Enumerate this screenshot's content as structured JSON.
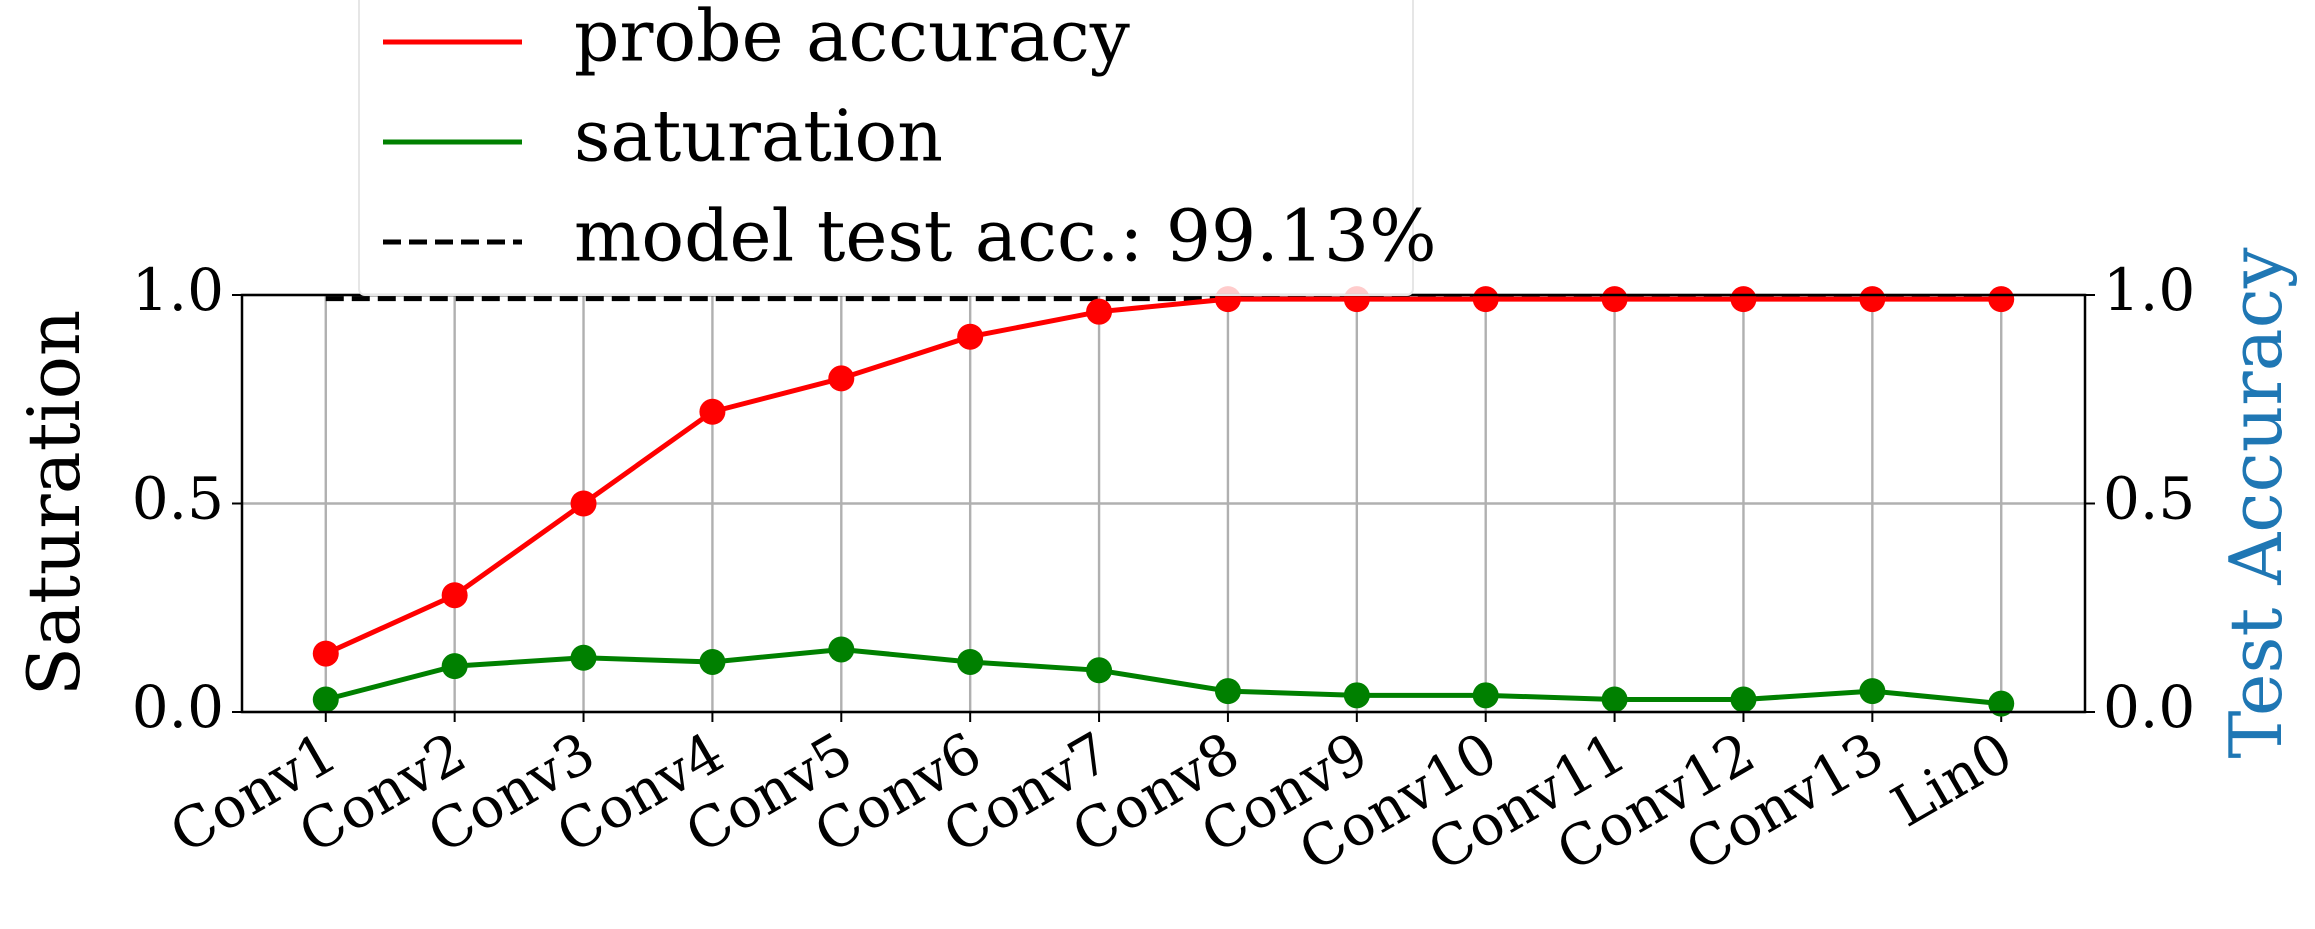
{
  "chart_data": {
    "type": "line",
    "categories": [
      "Conv1",
      "Conv2",
      "Conv3",
      "Conv4",
      "Conv5",
      "Conv6",
      "Conv7",
      "Conv8",
      "Conv9",
      "Conv10",
      "Conv11",
      "Conv12",
      "Conv13",
      "Lin0"
    ],
    "ylabel": "Saturation",
    "y2label": "Test Accuracy",
    "y2label_color": "#1f77b4",
    "ylim": [
      0,
      1
    ],
    "yticks": [
      {
        "value": 0,
        "label": "0.0"
      },
      {
        "value": 0.5,
        "label": "0.5"
      },
      {
        "value": 1,
        "label": "1.0"
      }
    ],
    "y2lim": [
      0,
      1
    ],
    "y2ticks": [
      {
        "value": 0,
        "label": "0.0"
      },
      {
        "value": 0.5,
        "label": "0.5"
      },
      {
        "value": 1,
        "label": "1.0"
      }
    ],
    "grid": true,
    "series": [
      {
        "name": "probe accuracy",
        "color": "#ff0000",
        "axis": "y2",
        "values": [
          0.14,
          0.28,
          0.5,
          0.72,
          0.8,
          0.9,
          0.96,
          0.99,
          0.99,
          0.99,
          0.99,
          0.99,
          0.99,
          0.99
        ]
      },
      {
        "name": "saturation",
        "color": "#008000",
        "values": [
          0.03,
          0.11,
          0.13,
          0.12,
          0.15,
          0.12,
          0.1,
          0.05,
          0.04,
          0.04,
          0.03,
          0.03,
          0.05,
          0.02
        ]
      }
    ],
    "reference_line": {
      "name": "model test acc.: 99.13%",
      "value": 0.9913,
      "color": "#000000",
      "axis": "y2"
    }
  }
}
